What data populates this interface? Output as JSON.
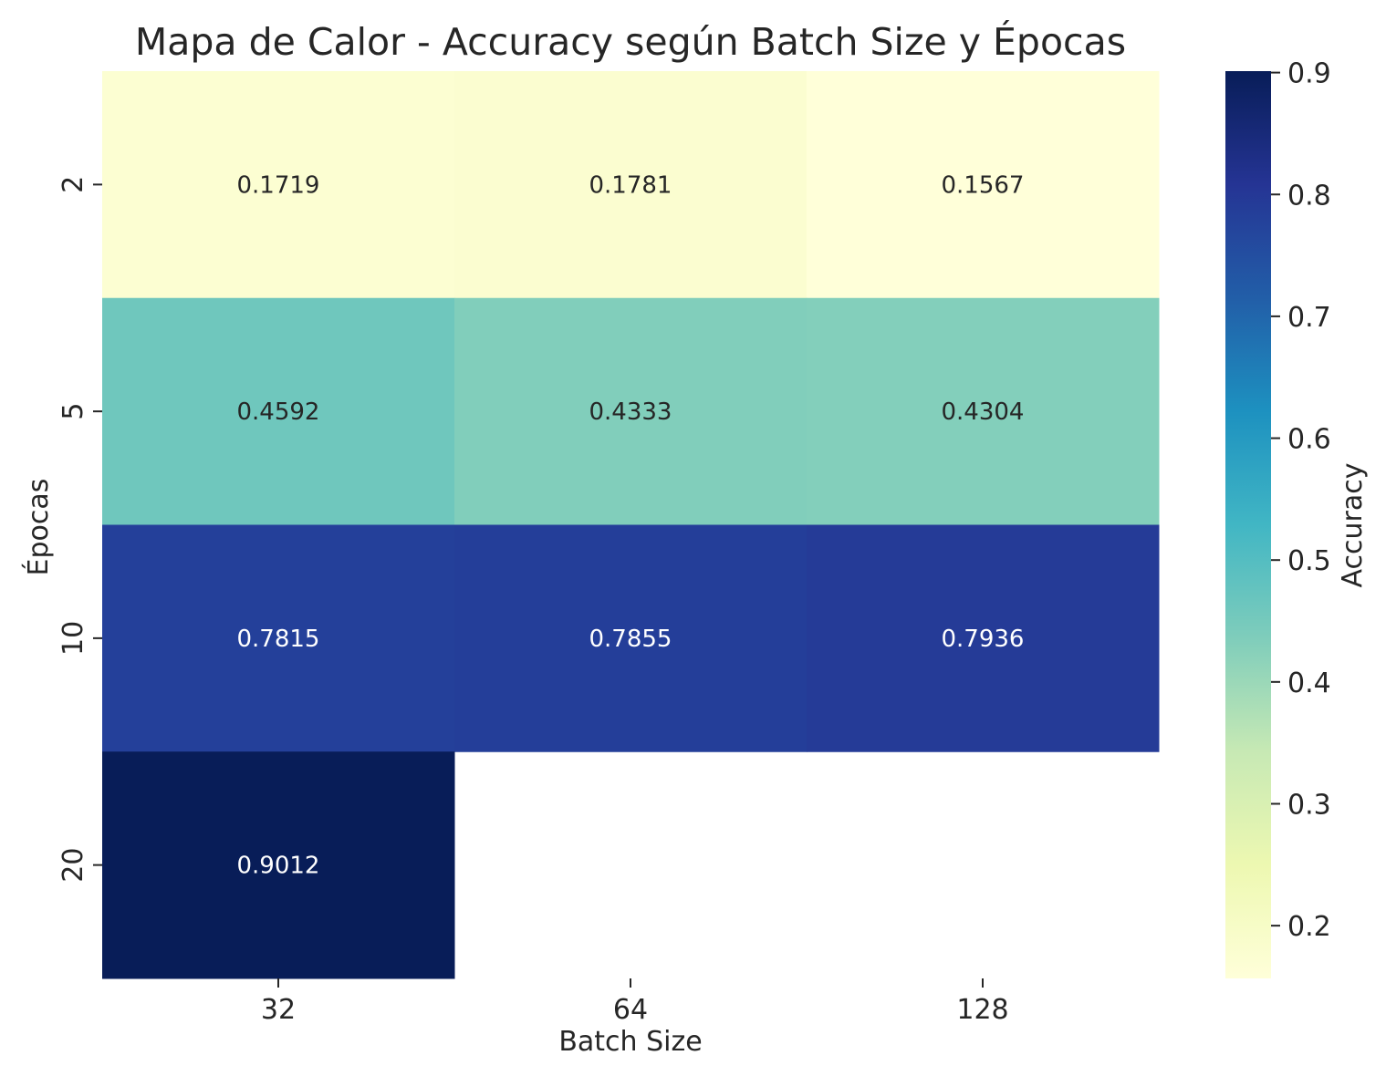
{
  "chart_data": {
    "type": "heatmap",
    "title": "Mapa de Calor - Accuracy según Batch Size y Épocas",
    "xlabel": "Batch Size",
    "ylabel": "Épocas",
    "x_categories": [
      "32",
      "64",
      "128"
    ],
    "y_categories": [
      "2",
      "5",
      "10",
      "20"
    ],
    "values": [
      [
        0.1719,
        0.1781,
        0.1567
      ],
      [
        0.4592,
        0.4333,
        0.4304
      ],
      [
        0.7815,
        0.7855,
        0.7936
      ],
      [
        0.9012,
        null,
        null
      ]
    ],
    "value_format": "4 decimals",
    "colorbar": {
      "label": "Accuracy",
      "ticks": [
        "0.2",
        "0.3",
        "0.4",
        "0.5",
        "0.6",
        "0.7",
        "0.8",
        "0.9"
      ],
      "range": [
        0.1567,
        0.9012
      ],
      "colormap": "YlGnBu",
      "placement": "right"
    },
    "grid": false,
    "colors": {
      "text_dark": "#262626",
      "text_light": "#ffffff",
      "missing_cell": "#ffffff"
    }
  }
}
